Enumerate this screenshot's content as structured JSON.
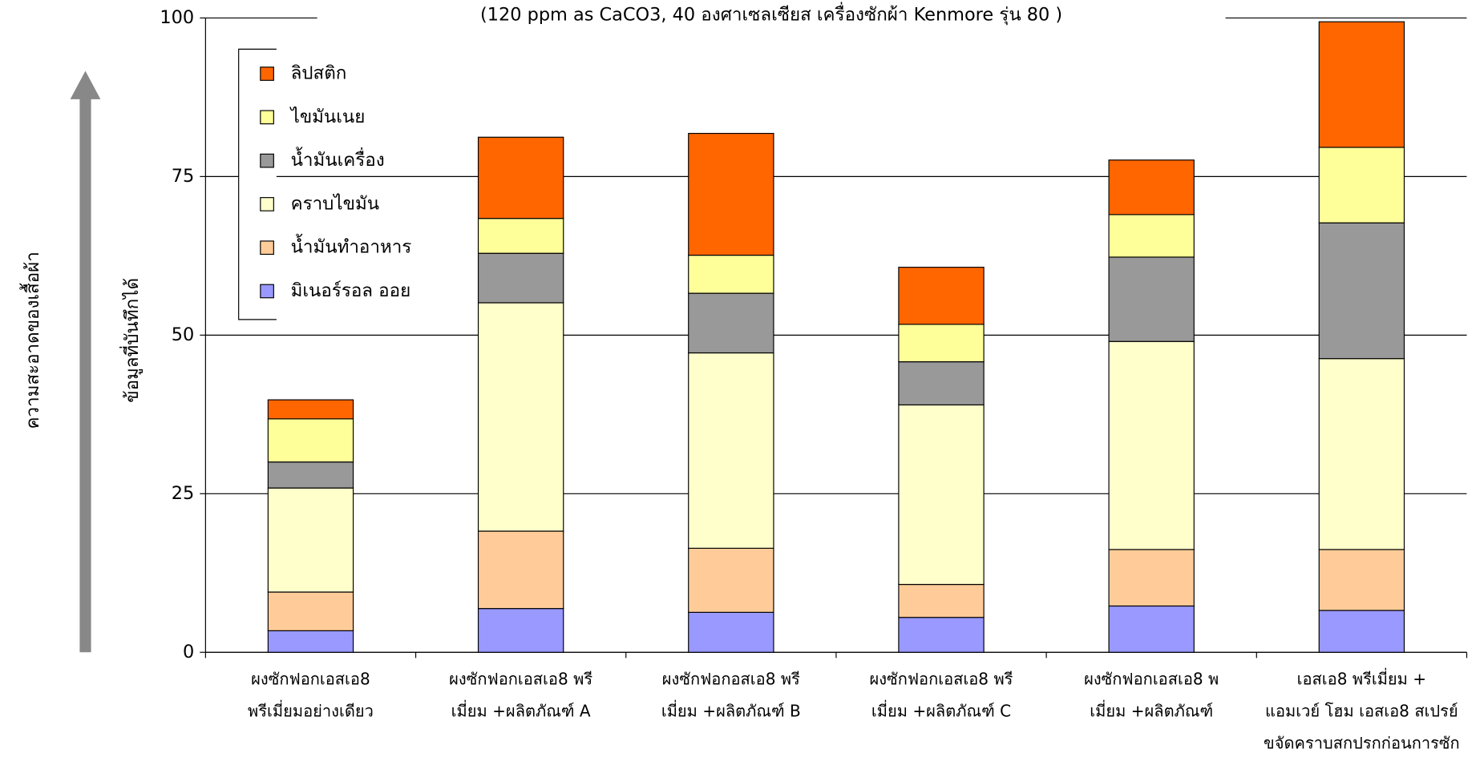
{
  "chart_data": {
    "type": "stacked_bar",
    "title": "(120 ppm as CaCO3, 40 องศาเซลเซียส  เครื่องซักผ้า Kenmore รุ่น 80 )",
    "y_label": "ข้อมูลที่บันทึกได้",
    "annotation": "ความสะอาดของเสื้อผ้า",
    "categories": [
      "ผงซักฟอกเอสเอ8\nพรีเมี่ยมอย่างเดียว",
      "ผงซักฟอกเอสเอ8 พรี\nเมี่ยม +ผลิตภัณฑ์ A",
      "ผงซักฟอกอสเอ8 พรี\nเมี่ยม +ผลิตภัณฑ์ B",
      "ผงซักฟอกเอสเอ8 พรี\nเมี่ยม +ผลิตภัณฑ์ C",
      "ผงซักฟอกเอสเอ8 พ\nเมี่ยม +ผลิตภัณฑ์",
      "เอสเอ8 พรีเมี่ยม +\nแอมเวย์ โฮม เอสเอ8 สเปรย์\nขจัดคราบสกปรกก่อนการซัก"
    ],
    "series": [
      {
        "name": "มิเนอร์รอล ออย",
        "color": "#9999ff",
        "values": [
          3.4,
          6.9,
          6.3,
          5.5,
          7.3,
          6.6
        ]
      },
      {
        "name": "น้ำมันทำอาหาร",
        "color": "#ffcc99",
        "values": [
          6.1,
          12.2,
          10.1,
          5.2,
          8.9,
          9.6
        ]
      },
      {
        "name": "คราบไขมัน",
        "color": "#ffffcc",
        "values": [
          16.4,
          36.0,
          30.8,
          28.3,
          32.8,
          30.1
        ]
      },
      {
        "name": "น้ำมันเครื่อง",
        "color": "#999999",
        "values": [
          4.1,
          7.8,
          9.4,
          6.8,
          13.3,
          21.4
        ]
      },
      {
        "name": "ไขมันเนย",
        "color": "#ffff99",
        "values": [
          6.8,
          5.5,
          6.0,
          5.9,
          6.7,
          11.9
        ]
      },
      {
        "name": "ลิปสติก",
        "color": "#ff6600",
        "values": [
          3.0,
          12.8,
          19.2,
          9.0,
          8.6,
          19.8
        ]
      }
    ],
    "ylim": [
      0,
      100
    ],
    "yticks": [
      0,
      25,
      50,
      75,
      100
    ],
    "grid": true,
    "legend": "upper left"
  }
}
